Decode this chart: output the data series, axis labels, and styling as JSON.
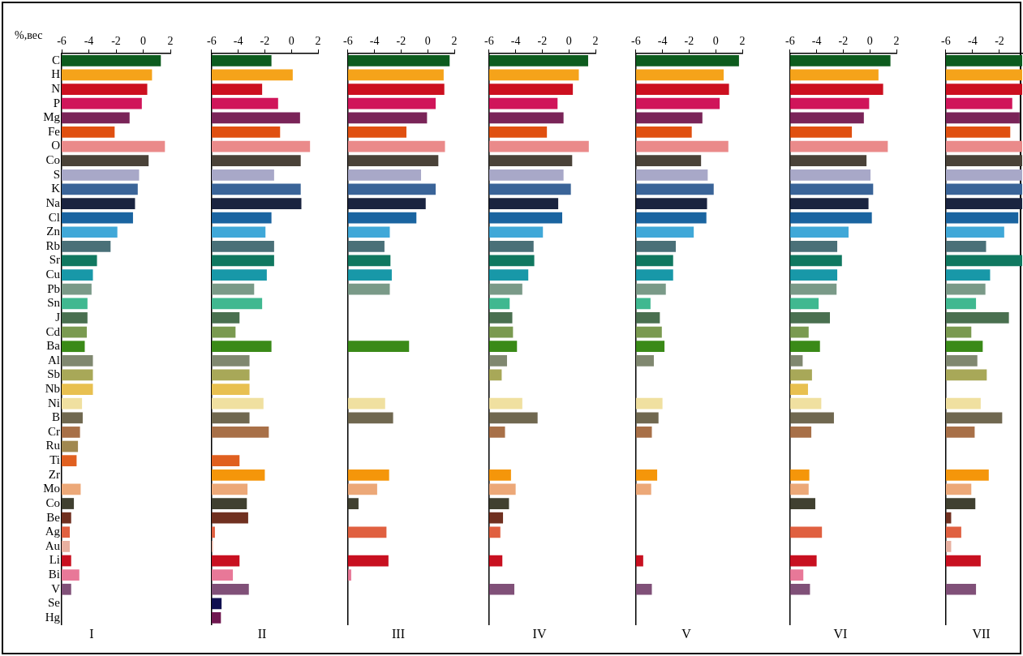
{
  "chart_data": [
    {
      "type": "bar",
      "orientation": "horizontal",
      "xlabel": "I",
      "ylabel": "%,вес",
      "categories": [
        "C",
        "H",
        "N",
        "P",
        "Mg",
        "Fe",
        "O",
        "Co",
        "S",
        "K",
        "Na",
        "Cl",
        "Zn",
        "Rb",
        "Sr",
        "Cu",
        "Pb",
        "Sn",
        "J",
        "Cd",
        "Ba",
        "Al",
        "Sb",
        "Nb",
        "Ni",
        "B",
        "Cr",
        "Ru",
        "Ti",
        "Zr",
        "Mo",
        "Co",
        "Be",
        "Ag",
        "Au",
        "Li",
        "Bi",
        "V",
        "Se",
        "Hg"
      ],
      "base": [
        -6,
        -6,
        -6,
        -6,
        -6,
        -6,
        -6,
        -6,
        -6,
        -6,
        -6,
        -6,
        -6,
        -6,
        -6,
        -6,
        -6,
        -6,
        -6,
        -6,
        -6,
        -6,
        -6,
        -6,
        -6,
        -6,
        -6,
        -6,
        -6,
        null,
        -6,
        -6,
        -6,
        -6,
        -6,
        -6,
        -6,
        -6,
        null,
        null
      ],
      "values": [
        7.3,
        6.65,
        6.3,
        5.9,
        5.0,
        3.9,
        7.6,
        6.4,
        5.7,
        5.6,
        5.4,
        5.25,
        4.1,
        3.6,
        2.6,
        2.3,
        2.2,
        1.9,
        1.9,
        1.85,
        1.7,
        2.3,
        2.3,
        2.3,
        1.5,
        1.55,
        1.35,
        1.2,
        1.1,
        null,
        1.4,
        0.9,
        0.7,
        0.6,
        0.6,
        0.7,
        1.3,
        0.7,
        null,
        null
      ],
      "colors": [
        "#0d5c1e",
        "#f5a31a",
        "#cc1020",
        "#d0155a",
        "#7a2458",
        "#e05010",
        "#ea8a8a",
        "#4a4238",
        "#a8a8c8",
        "#3a6498",
        "#1a2440",
        "#1a64a0",
        "#40a8d8",
        "#4a7078",
        "#107860",
        "#1898a8",
        "#7a9a88",
        "#40b890",
        "#4a7050",
        "#7a9a50",
        "#3a8a18",
        "#808870",
        "#a8a858",
        "#e8c050",
        "#f0e0a0",
        "#706850",
        "#a87048",
        "#a08850",
        "#e06020",
        "#f5960a",
        "#eca878",
        "#404030",
        "#703020",
        "#e06040",
        "#e8b0a0",
        "#c81020",
        "#e87898",
        "#805078",
        "#101050",
        "#701850"
      ],
      "xlim": [
        -6,
        2
      ],
      "xticks": [
        -6,
        -4,
        -2,
        0,
        2
      ]
    },
    {
      "type": "bar",
      "orientation": "horizontal",
      "xlabel": "II",
      "tick_labels": "x",
      "categories": [
        null,
        null,
        null,
        null,
        null,
        null,
        null,
        null,
        null,
        null,
        null,
        null,
        null,
        null,
        null,
        null,
        null,
        null,
        null,
        null,
        null,
        null,
        null,
        null,
        null,
        null,
        null,
        null,
        null,
        null,
        null,
        null,
        null,
        null,
        null,
        null,
        null,
        null,
        null,
        null
      ],
      "base": [
        -6,
        -6,
        -6,
        -6,
        -6,
        -6,
        -6,
        -6,
        -6,
        -6,
        -6,
        -6,
        -6,
        -6,
        -6,
        -6,
        -6,
        -6,
        -6,
        -6,
        -6,
        -6,
        -6,
        -6,
        -6,
        -6,
        -6,
        null,
        -6,
        -6,
        -6,
        -6,
        -6,
        -6,
        -6,
        -6,
        -6,
        -6,
        -6,
        -6
      ],
      "values": [
        4.5,
        6.1,
        3.8,
        5.0,
        6.65,
        5.15,
        7.4,
        6.7,
        4.7,
        6.7,
        6.75,
        4.5,
        4.05,
        4.7,
        4.7,
        4.15,
        3.2,
        3.8,
        2.1,
        1.8,
        4.5,
        2.85,
        2.85,
        2.85,
        3.9,
        2.85,
        4.3,
        null,
        2.1,
        4.0,
        2.7,
        2.65,
        2.75,
        0.25,
        0.1,
        2.1,
        1.6,
        2.8,
        0.75,
        0.7
      ],
      "colors": [
        "#0d5c1e",
        "#f5a31a",
        "#cc1020",
        "#d0155a",
        "#7a2458",
        "#e05010",
        "#ea8a8a",
        "#4a4238",
        "#a8a8c8",
        "#3a6498",
        "#1a2440",
        "#1a64a0",
        "#40a8d8",
        "#4a7078",
        "#107860",
        "#1898a8",
        "#7a9a88",
        "#40b890",
        "#4a7050",
        "#7a9a50",
        "#3a8a18",
        "#808870",
        "#a8a858",
        "#e8c050",
        "#f0e0a0",
        "#706850",
        "#a87048",
        "#a08850",
        "#e06020",
        "#f5960a",
        "#eca878",
        "#404030",
        "#703020",
        "#e06040",
        "#e8b0a0",
        "#c81020",
        "#e87898",
        "#805078",
        "#101050",
        "#701850"
      ],
      "xlim": [
        -6,
        2
      ],
      "xticks": [
        -6,
        -4,
        -2,
        0,
        2
      ]
    },
    {
      "type": "bar",
      "orientation": "horizontal",
      "xlabel": "III",
      "tick_labels": "x",
      "categories": [
        null,
        null,
        null,
        null,
        null,
        null,
        null,
        null,
        null,
        null,
        null,
        null,
        null,
        null,
        null,
        null,
        null,
        null,
        null,
        null,
        null,
        null,
        null,
        null,
        null,
        null,
        null,
        null,
        null,
        null,
        null,
        null,
        null,
        null,
        null,
        null,
        null,
        null,
        null,
        null
      ],
      "base": [
        -6,
        -6,
        -6,
        -6,
        -6,
        -6,
        -6,
        -6,
        -6,
        -6,
        -6,
        -6,
        -6,
        -6,
        -6,
        -6,
        -6,
        null,
        null,
        null,
        -6,
        null,
        null,
        null,
        -6,
        -6,
        null,
        null,
        null,
        -6,
        -6,
        -6,
        null,
        -6,
        null,
        -6,
        -6,
        null,
        null,
        null
      ],
      "values": [
        7.65,
        7.2,
        7.25,
        6.6,
        5.95,
        4.4,
        7.3,
        6.8,
        5.5,
        6.6,
        5.85,
        5.15,
        3.15,
        2.75,
        3.2,
        3.3,
        3.15,
        null,
        null,
        null,
        4.6,
        null,
        null,
        null,
        2.8,
        3.4,
        null,
        null,
        null,
        3.1,
        2.2,
        0.8,
        null,
        2.9,
        null,
        3.05,
        0.25,
        null,
        null,
        null
      ],
      "colors": [
        "#0d5c1e",
        "#f5a31a",
        "#cc1020",
        "#d0155a",
        "#7a2458",
        "#e05010",
        "#ea8a8a",
        "#4a4238",
        "#a8a8c8",
        "#3a6498",
        "#1a2440",
        "#1a64a0",
        "#40a8d8",
        "#4a7078",
        "#107860",
        "#1898a8",
        "#7a9a88",
        "#40b890",
        "#4a7050",
        "#7a9a50",
        "#3a8a18",
        "#808870",
        "#a8a858",
        "#e8c050",
        "#f0e0a0",
        "#706850",
        "#a87048",
        "#a08850",
        "#e06020",
        "#f5960a",
        "#eca878",
        "#404030",
        "#703020",
        "#e06040",
        "#e8b0a0",
        "#c81020",
        "#e87898",
        "#805078",
        "#101050",
        "#701850"
      ],
      "xlim": [
        -6,
        2
      ],
      "xticks": [
        -6,
        -4,
        -2,
        0,
        2
      ]
    },
    {
      "type": "bar",
      "orientation": "horizontal",
      "xlabel": "IV",
      "tick_labels": "x",
      "categories": [
        null,
        null,
        null,
        null,
        null,
        null,
        null,
        null,
        null,
        null,
        null,
        null,
        null,
        null,
        null,
        null,
        null,
        null,
        null,
        null,
        null,
        null,
        null,
        null,
        null,
        null,
        null,
        null,
        null,
        null,
        null,
        null,
        null,
        null,
        null,
        null,
        null,
        null,
        null,
        null
      ],
      "base": [
        -6,
        -6,
        -6,
        -6,
        -6,
        -6,
        -6,
        -6,
        -6,
        -6,
        -6,
        -6,
        -6,
        -6,
        -6,
        -6,
        -6,
        -6,
        -6,
        -6,
        -6,
        -6,
        -6,
        null,
        -6,
        -6,
        -6,
        null,
        null,
        -6,
        -6,
        -6,
        -6,
        -6,
        null,
        -6,
        null,
        -6,
        null,
        null
      ],
      "values": [
        7.45,
        6.75,
        6.3,
        5.15,
        5.6,
        4.35,
        7.5,
        6.25,
        5.6,
        6.15,
        5.2,
        5.5,
        4.05,
        3.35,
        3.4,
        2.95,
        2.5,
        1.55,
        1.75,
        1.8,
        2.1,
        1.35,
        0.95,
        null,
        2.5,
        3.65,
        1.2,
        null,
        null,
        1.65,
        2.0,
        1.5,
        1.05,
        0.85,
        null,
        1.0,
        null,
        1.9,
        null,
        null
      ],
      "colors": [
        "#0d5c1e",
        "#f5a31a",
        "#cc1020",
        "#d0155a",
        "#7a2458",
        "#e05010",
        "#ea8a8a",
        "#4a4238",
        "#a8a8c8",
        "#3a6498",
        "#1a2440",
        "#1a64a0",
        "#40a8d8",
        "#4a7078",
        "#107860",
        "#1898a8",
        "#7a9a88",
        "#40b890",
        "#4a7050",
        "#7a9a50",
        "#3a8a18",
        "#808870",
        "#a8a858",
        "#e8c050",
        "#f0e0a0",
        "#706850",
        "#a87048",
        "#a08850",
        "#e06020",
        "#f5960a",
        "#eca878",
        "#404030",
        "#703020",
        "#e06040",
        "#e8b0a0",
        "#c81020",
        "#e87898",
        "#805078",
        "#101050",
        "#701850"
      ],
      "xlim": [
        -6,
        2
      ],
      "xticks": [
        -6,
        -4,
        -2,
        0,
        2
      ]
    },
    {
      "type": "bar",
      "orientation": "horizontal",
      "xlabel": "V",
      "tick_labels": "x",
      "categories": [
        null,
        null,
        null,
        null,
        null,
        null,
        null,
        null,
        null,
        null,
        null,
        null,
        null,
        null,
        null,
        null,
        null,
        null,
        null,
        null,
        null,
        null,
        null,
        null,
        null,
        null,
        null,
        null,
        null,
        null,
        null,
        null,
        null,
        null,
        null,
        null,
        null,
        null,
        null,
        null
      ],
      "base": [
        -6,
        -6,
        -6,
        -6,
        -6,
        -6,
        -6,
        -6,
        -6,
        -6,
        -6,
        -6,
        -6,
        -6,
        -6,
        -6,
        -6,
        -6,
        -6,
        -6,
        -6,
        -6,
        null,
        null,
        -6,
        -6,
        -6,
        null,
        null,
        -6,
        -6,
        null,
        null,
        null,
        null,
        -6,
        null,
        -6,
        null,
        null
      ],
      "values": [
        7.75,
        6.6,
        7.0,
        6.3,
        5.0,
        4.2,
        6.95,
        4.9,
        5.4,
        5.85,
        5.35,
        5.3,
        4.35,
        3.0,
        2.8,
        2.8,
        2.25,
        1.1,
        1.8,
        1.95,
        2.15,
        1.35,
        null,
        null,
        2.0,
        1.7,
        1.2,
        null,
        null,
        1.6,
        1.15,
        null,
        null,
        null,
        null,
        0.55,
        null,
        1.2,
        null,
        null
      ],
      "colors": [
        "#0d5c1e",
        "#f5a31a",
        "#cc1020",
        "#d0155a",
        "#7a2458",
        "#e05010",
        "#ea8a8a",
        "#4a4238",
        "#a8a8c8",
        "#3a6498",
        "#1a2440",
        "#1a64a0",
        "#40a8d8",
        "#4a7078",
        "#107860",
        "#1898a8",
        "#7a9a88",
        "#40b890",
        "#4a7050",
        "#7a9a50",
        "#3a8a18",
        "#808870",
        "#a8a858",
        "#e8c050",
        "#f0e0a0",
        "#706850",
        "#a87048",
        "#a08850",
        "#e06020",
        "#f5960a",
        "#eca878",
        "#404030",
        "#703020",
        "#e06040",
        "#e8b0a0",
        "#c81020",
        "#e87898",
        "#805078",
        "#101050",
        "#701850"
      ],
      "xlim": [
        -6,
        2
      ],
      "xticks": [
        -6,
        -4,
        -2,
        0,
        2
      ]
    },
    {
      "type": "bar",
      "orientation": "horizontal",
      "xlabel": "VI",
      "tick_labels": "x",
      "categories": [
        null,
        null,
        null,
        null,
        null,
        null,
        null,
        null,
        null,
        null,
        null,
        null,
        null,
        null,
        null,
        null,
        null,
        null,
        null,
        null,
        null,
        null,
        null,
        null,
        null,
        null,
        null,
        null,
        null,
        null,
        null,
        null,
        null,
        null,
        null,
        null,
        null,
        null,
        null,
        null
      ],
      "base": [
        -6,
        -6,
        -6,
        -6,
        -6,
        -6,
        -6,
        -6,
        -6,
        -6,
        -6,
        -6,
        -6,
        -6,
        -6,
        -6,
        -6,
        -6,
        -6,
        -6,
        -6,
        -6,
        -6,
        -6,
        -6,
        -6,
        -6,
        null,
        null,
        -6,
        -6,
        -6,
        null,
        -6,
        null,
        -6,
        -6,
        -6,
        null,
        null
      ],
      "values": [
        7.55,
        6.65,
        7.0,
        5.95,
        5.55,
        4.65,
        7.35,
        5.75,
        6.05,
        6.25,
        5.9,
        6.15,
        4.4,
        3.55,
        3.9,
        3.55,
        3.5,
        2.15,
        3.0,
        1.4,
        2.25,
        0.95,
        1.65,
        1.35,
        2.35,
        3.3,
        1.6,
        null,
        null,
        1.45,
        1.4,
        1.9,
        null,
        2.4,
        null,
        2.0,
        1.0,
        1.5,
        null,
        null
      ],
      "colors": [
        "#0d5c1e",
        "#f5a31a",
        "#cc1020",
        "#d0155a",
        "#7a2458",
        "#e05010",
        "#ea8a8a",
        "#4a4238",
        "#a8a8c8",
        "#3a6498",
        "#1a2440",
        "#1a64a0",
        "#40a8d8",
        "#4a7078",
        "#107860",
        "#1898a8",
        "#7a9a88",
        "#40b890",
        "#4a7050",
        "#7a9a50",
        "#3a8a18",
        "#808870",
        "#a8a858",
        "#e8c050",
        "#f0e0a0",
        "#706850",
        "#a87048",
        "#a08850",
        "#e06020",
        "#f5960a",
        "#eca878",
        "#404030",
        "#703020",
        "#e06040",
        "#e8b0a0",
        "#c81020",
        "#e87898",
        "#805078",
        "#101050",
        "#701850"
      ],
      "xlim": [
        -6,
        2
      ],
      "xticks": [
        -6,
        -4,
        -2,
        0,
        2
      ]
    },
    {
      "type": "bar",
      "orientation": "horizontal",
      "xlabel": "VII",
      "tick_labels": "x",
      "categories": [
        null,
        null,
        null,
        null,
        null,
        null,
        null,
        null,
        null,
        null,
        null,
        null,
        null,
        null,
        null,
        null,
        null,
        null,
        null,
        null,
        null,
        null,
        null,
        null,
        null,
        null,
        null,
        null,
        null,
        null,
        null,
        null,
        null,
        null,
        null,
        null,
        null,
        null,
        null,
        null
      ],
      "base": [
        -6,
        -6,
        -6,
        -6,
        -6,
        -6,
        -6,
        -6,
        -6,
        -6,
        -6,
        -6,
        -6,
        -6,
        -6,
        -6,
        -6,
        -6,
        -6,
        -6,
        -6,
        -6,
        -6,
        null,
        -6,
        -6,
        -6,
        null,
        null,
        -6,
        -6,
        -6,
        -6,
        -6,
        -6,
        -6,
        null,
        -6,
        null,
        null
      ],
      "values": [
        5.7,
        5.7,
        5.7,
        4.95,
        5.5,
        4.8,
        5.7,
        5.7,
        5.7,
        5.7,
        5.7,
        5.4,
        4.35,
        3.0,
        5.7,
        3.3,
        2.95,
        2.25,
        4.7,
        1.9,
        2.75,
        2.35,
        3.05,
        null,
        2.6,
        4.2,
        2.15,
        null,
        null,
        3.2,
        1.9,
        2.2,
        0.4,
        1.15,
        0.4,
        2.6,
        null,
        2.25,
        null,
        null
      ],
      "colors": [
        "#0d5c1e",
        "#f5a31a",
        "#cc1020",
        "#d0155a",
        "#7a2458",
        "#e05010",
        "#ea8a8a",
        "#4a4238",
        "#a8a8c8",
        "#3a6498",
        "#1a2440",
        "#1a64a0",
        "#40a8d8",
        "#4a7078",
        "#107860",
        "#1898a8",
        "#7a9a88",
        "#40b890",
        "#4a7050",
        "#7a9a50",
        "#3a8a18",
        "#808870",
        "#a8a858",
        "#e8c050",
        "#f0e0a0",
        "#706850",
        "#a87048",
        "#a08850",
        "#e06020",
        "#f5960a",
        "#eca878",
        "#404030",
        "#703020",
        "#e06040",
        "#e8b0a0",
        "#c81020",
        "#e87898",
        "#805078",
        "#101050",
        "#701850"
      ],
      "xlim": [
        -6,
        -0.3
      ],
      "xticks": [
        -6,
        -4,
        -2
      ]
    }
  ]
}
